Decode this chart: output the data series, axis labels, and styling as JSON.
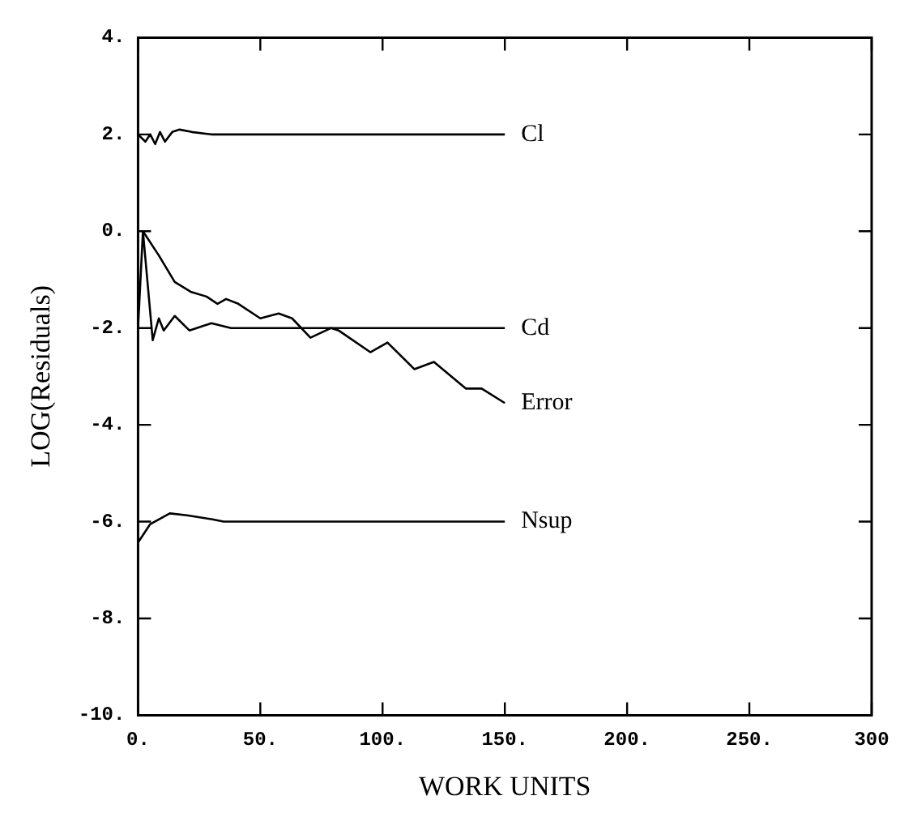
{
  "chart_data": {
    "type": "line",
    "xlabel": "WORK UNITS",
    "ylabel": "LOG(Residuals)",
    "xlim": [
      0,
      300
    ],
    "xticks": [
      {
        "value": 0,
        "label": "0."
      },
      {
        "value": 50,
        "label": "50."
      },
      {
        "value": 100,
        "label": "100."
      },
      {
        "value": 150,
        "label": "150."
      },
      {
        "value": 200,
        "label": "200."
      },
      {
        "value": 250,
        "label": "250."
      },
      {
        "value": 300,
        "label": "300"
      }
    ],
    "ylim": [
      -10,
      4
    ],
    "yticks": [
      {
        "value": -10,
        "label": "-10."
      },
      {
        "value": -8,
        "label": "-8."
      },
      {
        "value": -6,
        "label": "-6."
      },
      {
        "value": -4,
        "label": "-4."
      },
      {
        "value": -2,
        "label": "-2."
      },
      {
        "value": 0,
        "label": "0."
      },
      {
        "value": 2,
        "label": "2."
      },
      {
        "value": 4,
        "label": "4."
      }
    ],
    "grid": false,
    "legend": false,
    "marker": "none",
    "line_style": "solid",
    "series": [
      {
        "name": "Cl",
        "color": "#000000",
        "x": [
          0,
          3,
          5,
          7,
          9,
          11,
          14,
          17,
          22,
          30,
          150
        ],
        "values": [
          2.0,
          1.85,
          2.0,
          1.8,
          2.05,
          1.85,
          2.05,
          2.1,
          2.05,
          2.0,
          2.0
        ]
      },
      {
        "name": "Cd",
        "color": "#000000",
        "x": [
          0,
          2,
          6,
          8.5,
          10.5,
          15,
          21,
          30,
          38,
          150
        ],
        "values": [
          -2.0,
          0,
          -2.25,
          -1.8,
          -2.05,
          -1.75,
          -2.05,
          -1.9,
          -2.0,
          -2.0
        ]
      },
      {
        "name": "Error",
        "color": "#000000",
        "x": [
          2,
          8.5,
          15,
          21.5,
          28,
          32.5,
          36,
          41,
          50,
          57.5,
          63,
          70.5,
          79,
          82,
          95,
          102,
          113,
          121,
          134,
          140.5,
          150
        ],
        "values": [
          0,
          -0.5,
          -1.05,
          -1.25,
          -1.35,
          -1.5,
          -1.4,
          -1.5,
          -1.8,
          -1.7,
          -1.8,
          -2.2,
          -2.0,
          -2.05,
          -2.5,
          -2.3,
          -2.85,
          -2.7,
          -3.25,
          -3.25,
          -3.55
        ]
      },
      {
        "name": "Nsup",
        "color": "#000000",
        "x": [
          0,
          5,
          13,
          20,
          30,
          35,
          150
        ],
        "values": [
          -6.43,
          -6.05,
          -5.83,
          -5.87,
          -5.95,
          -6.0,
          -6.0
        ]
      }
    ]
  }
}
